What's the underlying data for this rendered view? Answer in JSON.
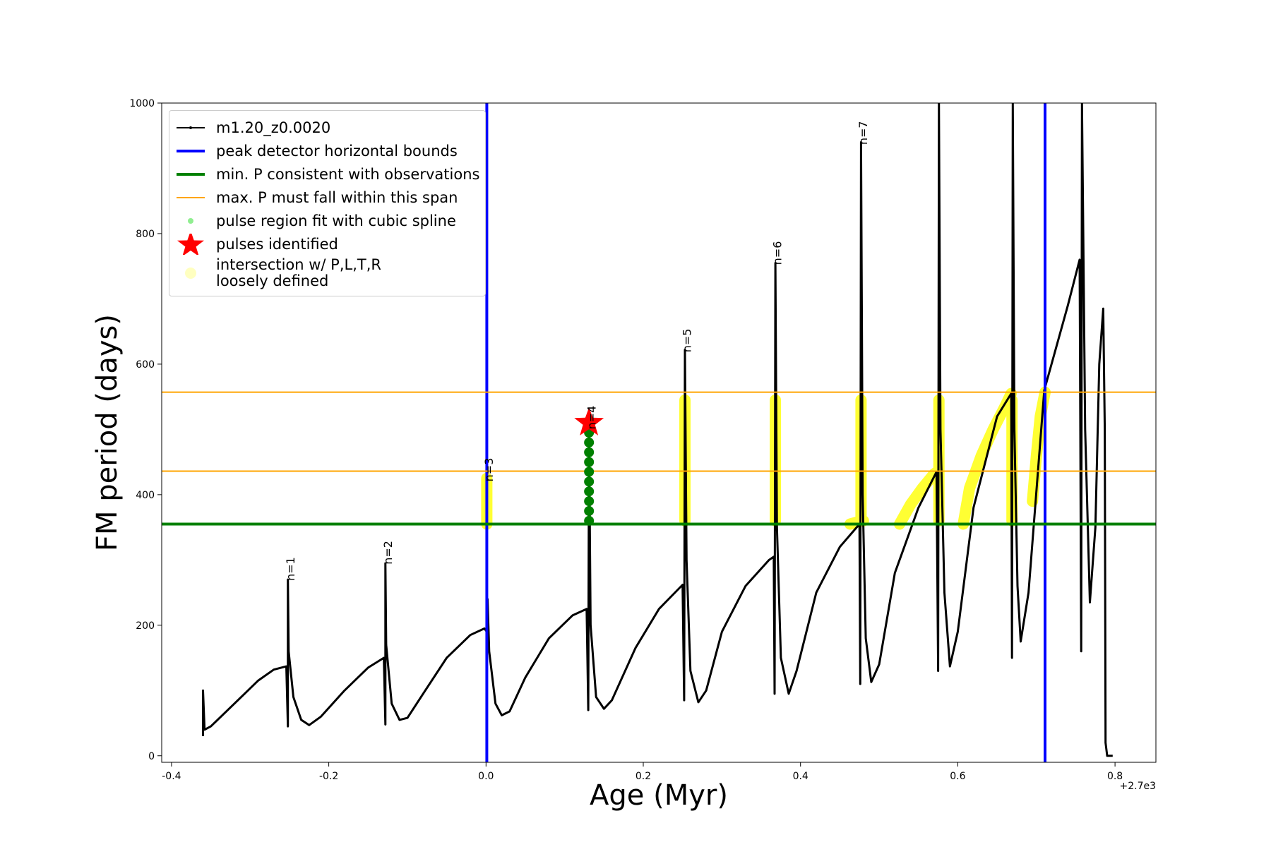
{
  "chart_data": {
    "type": "line",
    "xlabel": "Age (Myr)",
    "ylabel": "FM period (days)",
    "x_offset_label": "+2.7e3",
    "xlim": [
      -0.4125,
      0.852
    ],
    "ylim": [
      -10,
      1000
    ],
    "xticks": [
      -0.4,
      -0.2,
      {
        "value": 0,
        "label": "0.0"
      },
      0.2,
      0.4,
      0.6,
      0.8
    ],
    "yticks": [
      0,
      200,
      400,
      600,
      800,
      1000
    ],
    "legend": "upper left",
    "series": [
      {
        "name": "m1.20_z0.0020",
        "color": "#000000",
        "kind": "line",
        "x": [
          -0.36,
          -0.36,
          -0.358,
          -0.35,
          -0.32,
          -0.29,
          -0.27,
          -0.254,
          -0.252,
          -0.252,
          -0.251,
          -0.245,
          -0.235,
          -0.225,
          -0.21,
          -0.18,
          -0.15,
          -0.13,
          -0.128,
          -0.128,
          -0.127,
          -0.12,
          -0.11,
          -0.1,
          -0.08,
          -0.05,
          -0.02,
          -0.002,
          0.001,
          0.002,
          0.004,
          0.012,
          0.02,
          0.03,
          0.05,
          0.08,
          0.11,
          0.128,
          0.13,
          0.131,
          0.133,
          0.14,
          0.15,
          0.16,
          0.19,
          0.22,
          0.25,
          0.252,
          0.253,
          0.255,
          0.26,
          0.27,
          0.28,
          0.3,
          0.33,
          0.36,
          0.366,
          0.367,
          0.368,
          0.37,
          0.375,
          0.385,
          0.395,
          0.42,
          0.45,
          0.475,
          0.476,
          0.477,
          0.479,
          0.483,
          0.49,
          0.5,
          0.52,
          0.55,
          0.573,
          0.575,
          0.576,
          0.578,
          0.583,
          0.59,
          0.6,
          0.62,
          0.65,
          0.668,
          0.669,
          0.67,
          0.672,
          0.676,
          0.68,
          0.69,
          0.71,
          0.74,
          0.755,
          0.757,
          0.758,
          0.762,
          0.768,
          0.775,
          0.78,
          0.785,
          0.787,
          0.788,
          0.79,
          0.797
        ],
        "values": [
          30,
          100,
          40,
          45,
          80,
          115,
          132,
          137,
          45,
          270,
          160,
          90,
          55,
          47,
          60,
          100,
          135,
          150,
          48,
          295,
          170,
          80,
          55,
          58,
          95,
          150,
          185,
          195,
          190,
          240,
          160,
          80,
          62,
          68,
          120,
          180,
          215,
          225,
          70,
          500,
          200,
          90,
          72,
          85,
          165,
          225,
          262,
          85,
          622,
          300,
          130,
          82,
          100,
          190,
          260,
          300,
          305,
          95,
          755,
          350,
          150,
          95,
          130,
          250,
          320,
          355,
          110,
          940,
          400,
          180,
          113,
          140,
          280,
          380,
          435,
          130,
          1000,
          500,
          250,
          137,
          190,
          380,
          520,
          555,
          150,
          1000,
          500,
          260,
          175,
          250,
          560,
          690,
          760,
          160,
          1000,
          500,
          235,
          350,
          600,
          685,
          500,
          20,
          0,
          0
        ]
      },
      {
        "name": "peak detector horizontal bounds",
        "color": "#0000ff",
        "kind": "vline",
        "x": [
          0.001,
          0.711
        ]
      },
      {
        "name": "min. P consistent with observations",
        "color": "#008000",
        "kind": "hline",
        "values": [
          355
        ]
      },
      {
        "name": "max. P must fall within this span",
        "color": "#ffa500",
        "kind": "hline",
        "values": [
          436,
          557
        ]
      },
      {
        "name": "pulse region fit with cubic spline",
        "color": "#008000",
        "legend_color": "#90ee90",
        "kind": "scatter",
        "x": [
          0.131,
          0.131,
          0.131,
          0.131,
          0.131,
          0.131,
          0.131,
          0.131,
          0.131,
          0.131
        ],
        "values": [
          360,
          375,
          390,
          405,
          420,
          435,
          450,
          465,
          480,
          495
        ]
      },
      {
        "name": "pulses identified",
        "color": "#ff0000",
        "kind": "star",
        "x": [
          0.131
        ],
        "values": [
          510
        ]
      },
      {
        "name": "intersection w/ P,L,T,R\nloosely defined",
        "color": "#ffff00",
        "legend_color": "#ffffc0",
        "kind": "band",
        "x": [
          0.001,
          0.001,
          null,
          0.253,
          0.253,
          null,
          0.368,
          0.368,
          null,
          0.477,
          0.477,
          null,
          0.576,
          0.576,
          null,
          0.669,
          0.669,
          null,
          0.463,
          0.472,
          0.48,
          null,
          0.526,
          0.54,
          0.555,
          0.57,
          0.575,
          null,
          0.607,
          0.615,
          0.63,
          0.645,
          0.66,
          0.668,
          null,
          0.695,
          0.7,
          0.705,
          0.711
        ],
        "values": [
          355,
          425,
          null,
          360,
          545,
          null,
          360,
          545,
          null,
          360,
          545,
          null,
          360,
          545,
          null,
          360,
          545,
          null,
          355,
          358,
          360,
          null,
          355,
          385,
          410,
          432,
          436,
          null,
          355,
          410,
          460,
          500,
          535,
          555,
          null,
          390,
          460,
          520,
          557
        ]
      }
    ],
    "annotations": [
      {
        "text": "n=1",
        "x": -0.248,
        "y": 268
      },
      {
        "text": "n=2",
        "x": -0.124,
        "y": 293
      },
      {
        "text": "n=3",
        "x": 0.004,
        "y": 420
      },
      {
        "text": "n=4",
        "x": 0.135,
        "y": 500
      },
      {
        "text": "n=5",
        "x": 0.256,
        "y": 618
      },
      {
        "text": "n=6",
        "x": 0.371,
        "y": 752
      },
      {
        "text": "n=7",
        "x": 0.48,
        "y": 936
      }
    ]
  }
}
